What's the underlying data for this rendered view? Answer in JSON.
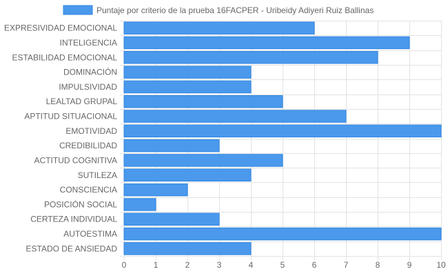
{
  "chart_data": {
    "type": "bar",
    "orientation": "horizontal",
    "legend_position": "top",
    "grid": true,
    "xlim": [
      0,
      10
    ],
    "x_ticks": [
      "0",
      "1",
      "2",
      "3",
      "4",
      "5",
      "6",
      "7",
      "8",
      "9",
      "10"
    ],
    "colors": {
      "bar_fill": "#4a99ec",
      "bar_stroke": "#2f86e2",
      "grid": "#e2e2e2"
    },
    "categories": [
      "EXPRESIVIDAD EMOCIONAL",
      "INTELIGENCIA",
      "ESTABILIDAD EMOCIONAL",
      "DOMINACIÓN",
      "IMPULSIVIDAD",
      "LEALTAD GRUPAL",
      "APTITUD SITUACIONAL",
      "EMOTIVIDAD",
      "CREDIBILIDAD",
      "ACTITUD COGNITIVA",
      "SUTILEZA",
      "CONSCIENCIA",
      "POSICIÓN SOCIAL",
      "CERTEZA INDIVIDUAL",
      "AUTOESTIMA",
      "ESTADO DE ANSIEDAD"
    ],
    "series": [
      {
        "name": "Puntaje por criterio de la prueba 16FACPER - Uribeidy Adiyeri Ruiz Ballinas",
        "values": [
          6,
          9,
          8,
          4,
          4,
          5,
          7,
          10,
          3,
          5,
          4,
          2,
          1,
          3,
          10,
          4
        ]
      }
    ]
  }
}
